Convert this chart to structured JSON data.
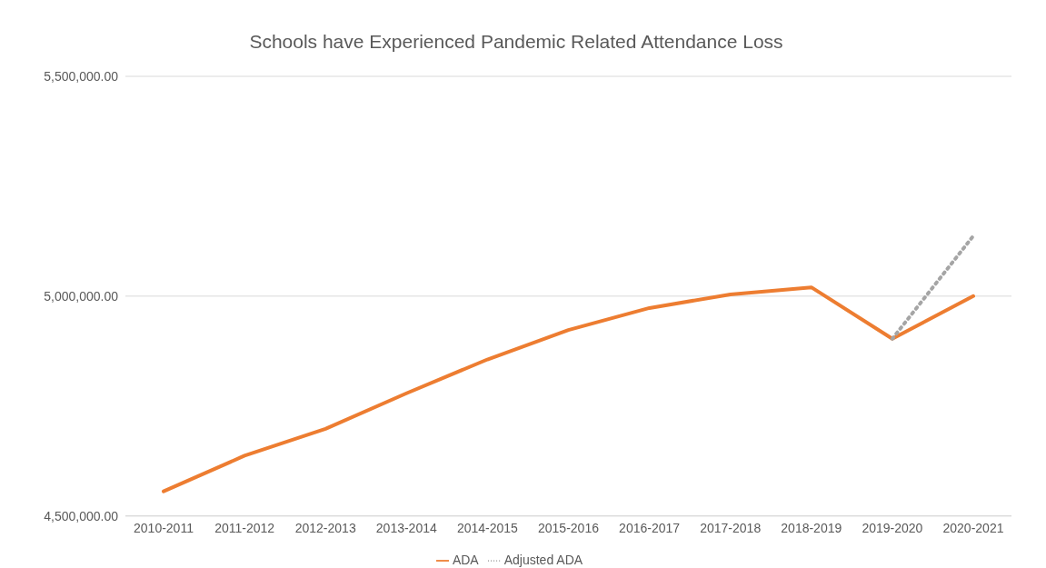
{
  "chart_data": {
    "type": "line",
    "title": "Schools have Experienced Pandemic Related Attendance Loss",
    "categories": [
      "2010-2011",
      "2011-2012",
      "2012-2013",
      "2013-2014",
      "2014-2015",
      "2015-2016",
      "2016-2017",
      "2017-2018",
      "2018-2019",
      "2019-2020",
      "2020-2021"
    ],
    "series": [
      {
        "name": "ADA",
        "color": "#ed7d31",
        "values": [
          4556000,
          4637000,
          4698000,
          4779000,
          4856000,
          4923000,
          4973000,
          5004000,
          5020000,
          4903000,
          5000000
        ]
      },
      {
        "name": "Adjusted ADA",
        "color": "#a5a5a5",
        "line_style": "dotted",
        "values": [
          null,
          null,
          null,
          null,
          null,
          null,
          null,
          null,
          null,
          4903000,
          5137000
        ]
      }
    ],
    "ylim": [
      4500000,
      5500000
    ],
    "yticks": [
      {
        "value": 4500000,
        "label": "4,500,000.00"
      },
      {
        "value": 5000000,
        "label": "5,000,000.00"
      },
      {
        "value": 5500000,
        "label": "5,500,000.00"
      }
    ],
    "grid": "y",
    "legend": "bottom",
    "marker": "none",
    "line_style": "solid"
  }
}
